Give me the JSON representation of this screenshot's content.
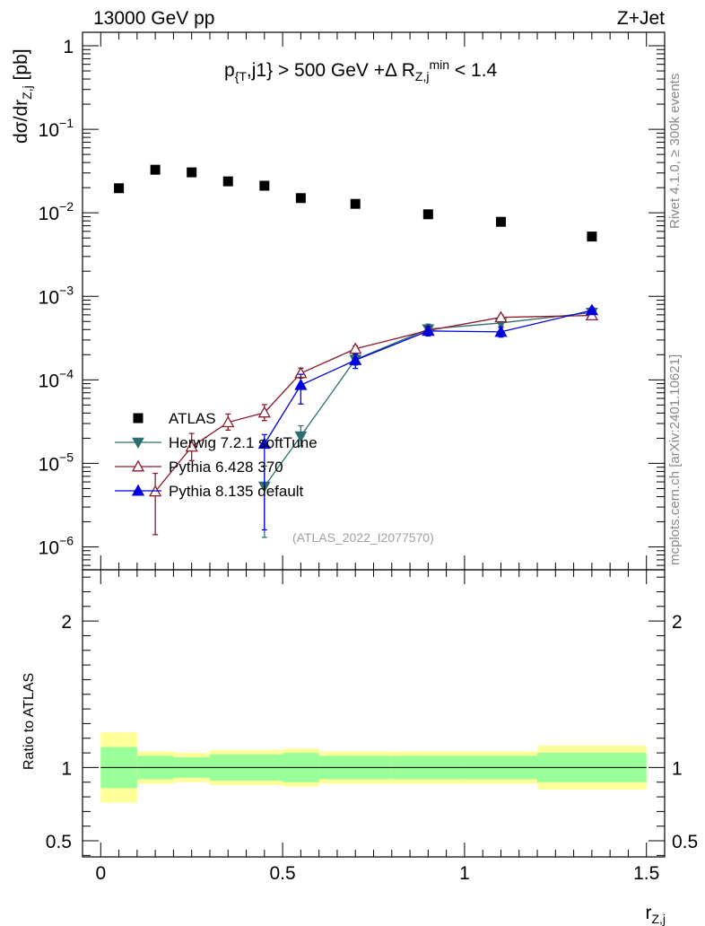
{
  "header": {
    "left": "13000 GeV pp",
    "right": "Z+Jet"
  },
  "cut_label": {
    "p": "p",
    "p_sub": "{T",
    "mid": ",j1} > 500 GeV +Δ R",
    "r_sub": "Z,j",
    "r_sup": "min",
    "end": " < 1.4"
  },
  "y_label": {
    "main": "dσ/dr",
    "sub": "Z,j",
    "unit": " [pb]"
  },
  "ratio_label": "Ratio to ATLAS",
  "x_label": {
    "main": "r",
    "sub": "Z,j"
  },
  "side_labels": {
    "top": "Rivet 4.1.0, ≥ 300k events",
    "bottom": "mcplots.cern.ch [arXiv:2401.10621]"
  },
  "analysis_id": "(ATLAS_2022_I2077570)",
  "colors": {
    "atlas": "#000000",
    "herwig": "#2f6e6e",
    "pythia6": "#8b1a2b",
    "pythia8": "#0000e0",
    "band_outer": "#ffff99",
    "band_inner": "#99ff99"
  },
  "chart_data": {
    "type": "scatter",
    "log_y": true,
    "xlim": [
      -0.05,
      1.55
    ],
    "ylim_main": [
      5.32e-07,
      1.45
    ],
    "ylim_ratio": [
      0.39,
      2.35
    ],
    "x_ticks": [
      {
        "value": 0,
        "label": "0"
      },
      {
        "value": 0.5,
        "label": "0.5"
      },
      {
        "value": 1,
        "label": "1"
      },
      {
        "value": 1.5,
        "label": "1.5"
      }
    ],
    "y_ticks_main": [
      {
        "exp": 0,
        "base": "1",
        "sup": ""
      },
      {
        "exp": -1,
        "base": "10",
        "sup": "−1"
      },
      {
        "exp": -2,
        "base": "10",
        "sup": "−2"
      },
      {
        "exp": -3,
        "base": "10",
        "sup": "−3"
      },
      {
        "exp": -4,
        "base": "10",
        "sup": "−4"
      },
      {
        "exp": -5,
        "base": "10",
        "sup": "−5"
      },
      {
        "exp": -6,
        "base": "10",
        "sup": "−6"
      }
    ],
    "y_ticks_ratio": [
      {
        "value": 0.5,
        "label": "0.5"
      },
      {
        "value": 1,
        "label": "1"
      },
      {
        "value": 2,
        "label": "2"
      }
    ],
    "atlas": {
      "name": "ATLAS",
      "x": [
        0.05,
        0.15,
        0.25,
        0.35,
        0.45,
        0.55,
        0.7,
        0.9,
        1.1,
        1.35
      ],
      "y": [
        0.0197,
        0.0328,
        0.0305,
        0.0238,
        0.0211,
        0.015,
        0.0128,
        0.0096,
        0.0078,
        0.0052
      ]
    },
    "series": [
      {
        "name": "Herwig 7.2.1 softTune",
        "marker": "triangle-down-filled",
        "x": [
          0.45,
          0.55,
          0.7,
          0.9,
          1.1,
          1.35
        ],
        "y": [
          5.3e-06,
          2.12e-05,
          0.000175,
          0.000405,
          0.00048,
          0.00064
        ],
        "yerr_lo": [
          4e-06,
          5e-06,
          2.5e-05,
          6e-05,
          4e-05,
          5e-05
        ],
        "yerr_hi": [
          4e-06,
          7e-06,
          2.8e-05,
          6e-05,
          4e-05,
          5e-05
        ]
      },
      {
        "name": "Pythia 6.428 370",
        "marker": "triangle-up-open",
        "x": [
          0.15,
          0.25,
          0.35,
          0.45,
          0.55,
          0.7,
          0.9,
          1.1,
          1.35
        ],
        "y": [
          4.6e-06,
          1.58e-05,
          3.1e-05,
          4.05e-05,
          0.00012,
          0.000235,
          0.00039,
          0.00056,
          0.00059
        ],
        "yerr_lo": [
          3.2e-06,
          5e-06,
          6e-06,
          8e-06,
          1.5e-05,
          2e-05,
          3e-05,
          4e-05,
          4e-05
        ],
        "yerr_hi": [
          3e-06,
          7e-06,
          8e-06,
          1e-05,
          1.8e-05,
          2e-05,
          3e-05,
          4e-05,
          4e-05
        ]
      },
      {
        "name": "Pythia 8.135 default",
        "marker": "triangle-up-filled",
        "x": [
          0.45,
          0.55,
          0.7,
          0.9,
          1.1,
          1.35
        ],
        "y": [
          1.71e-05,
          8.65e-05,
          0.000172,
          0.000385,
          0.000375,
          0.00068
        ],
        "yerr_lo": [
          1.55e-05,
          3.5e-05,
          3.5e-05,
          5e-05,
          5e-05,
          5e-05
        ],
        "yerr_hi": [
          5e-06,
          3e-05,
          3e-05,
          5e-05,
          5e-05,
          5e-05
        ]
      }
    ],
    "ratio_band": {
      "edges": [
        0.0,
        0.1,
        0.2,
        0.3,
        0.4,
        0.5,
        0.6,
        0.8,
        1.0,
        1.2,
        1.5
      ],
      "inner": [
        0.14,
        0.08,
        0.07,
        0.09,
        0.09,
        0.1,
        0.08,
        0.08,
        0.08,
        0.1
      ],
      "outer": [
        0.24,
        0.11,
        0.1,
        0.12,
        0.12,
        0.13,
        0.11,
        0.11,
        0.11,
        0.15
      ]
    }
  }
}
